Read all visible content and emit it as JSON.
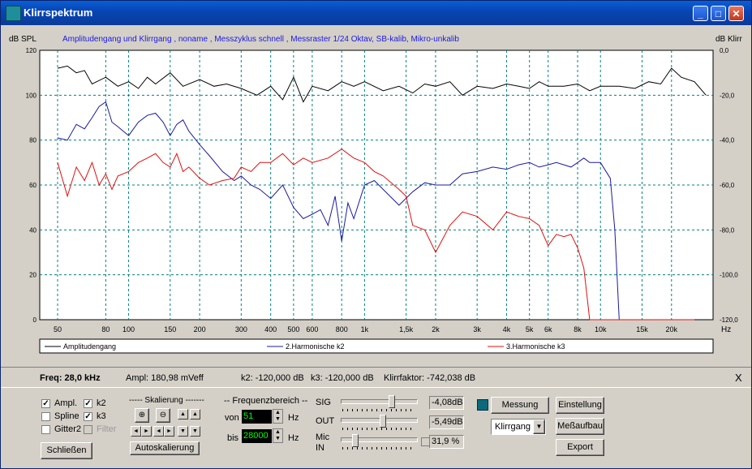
{
  "window": {
    "title": "Klirrspektrum"
  },
  "chart_data": {
    "type": "line",
    "title": "Amplitudengang und Klirrgang , noname , Messzyklus schnell , Messraster 1/24 Oktav, SB-kalib, Mikro-unkalib",
    "ylabel_left": "dB SPL",
    "ylabel_right": "dB Klirr",
    "xlabel": "Hz",
    "x_scale": "log",
    "xlim": [
      42,
      30000
    ],
    "ylim_left": [
      0,
      120
    ],
    "ylim_right": [
      -120,
      0
    ],
    "x_ticks": [
      {
        "v": 50,
        "t": "50"
      },
      {
        "v": 80,
        "t": "80"
      },
      {
        "v": 100,
        "t": "100"
      },
      {
        "v": 150,
        "t": "150"
      },
      {
        "v": 200,
        "t": "200"
      },
      {
        "v": 300,
        "t": "300"
      },
      {
        "v": 400,
        "t": "400"
      },
      {
        "v": 500,
        "t": "500"
      },
      {
        "v": 600,
        "t": "600"
      },
      {
        "v": 800,
        "t": "800"
      },
      {
        "v": 1000,
        "t": "1k"
      },
      {
        "v": 1500,
        "t": "1,5k"
      },
      {
        "v": 2000,
        "t": "2k"
      },
      {
        "v": 3000,
        "t": "3k"
      },
      {
        "v": 4000,
        "t": "4k"
      },
      {
        "v": 5000,
        "t": "5k"
      },
      {
        "v": 6000,
        "t": "6k"
      },
      {
        "v": 8000,
        "t": "8k"
      },
      {
        "v": 10000,
        "t": "10k"
      },
      {
        "v": 15000,
        "t": "15k"
      },
      {
        "v": 20000,
        "t": "20k"
      }
    ],
    "y_ticks_left": [
      "120",
      "100",
      "80",
      "60",
      "40",
      "20",
      "0"
    ],
    "y_ticks_right": [
      "0,0",
      "-20,0",
      "-40,0",
      "-60,0",
      "-80,0",
      "-100,0",
      "-120,0"
    ],
    "grid": true,
    "legend_position": "bottom",
    "series": [
      {
        "name": "Amplitudengang",
        "color": "#000000",
        "x": [
          50,
          55,
          60,
          65,
          70,
          80,
          90,
          100,
          110,
          120,
          130,
          150,
          170,
          200,
          230,
          260,
          300,
          350,
          400,
          450,
          500,
          550,
          600,
          700,
          800,
          900,
          1000,
          1200,
          1400,
          1600,
          1800,
          2000,
          2300,
          2600,
          3000,
          3500,
          4000,
          4500,
          5000,
          5500,
          6000,
          7000,
          8000,
          9000,
          10000,
          12000,
          14000,
          16000,
          18000,
          20000,
          22000,
          25000,
          28000
        ],
        "y": [
          112,
          113,
          110,
          111,
          105,
          108,
          104,
          106,
          103,
          108,
          105,
          110,
          104,
          107,
          104,
          105,
          103,
          100,
          104,
          98,
          108,
          97,
          104,
          102,
          106,
          104,
          106,
          102,
          104,
          101,
          105,
          104,
          106,
          100,
          104,
          103,
          105,
          104,
          103,
          106,
          104,
          104,
          105,
          102,
          104,
          104,
          103,
          106,
          105,
          112,
          108,
          106,
          100
        ]
      },
      {
        "name": "2.Harmonische k2",
        "color": "#1a1aa0",
        "x": [
          50,
          55,
          60,
          65,
          70,
          75,
          80,
          85,
          90,
          100,
          110,
          120,
          130,
          140,
          150,
          160,
          170,
          180,
          200,
          220,
          250,
          280,
          300,
          330,
          360,
          400,
          450,
          500,
          550,
          600,
          650,
          700,
          750,
          800,
          850,
          900,
          1000,
          1100,
          1200,
          1400,
          1600,
          1800,
          2000,
          2300,
          2600,
          3000,
          3500,
          4000,
          4500,
          5000,
          5500,
          6000,
          6500,
          7000,
          7500,
          8000,
          8500,
          9000,
          10000,
          11000,
          11500,
          12000
        ],
        "y": [
          81,
          80,
          87,
          85,
          90,
          95,
          97,
          88,
          86,
          82,
          88,
          91,
          92,
          88,
          82,
          87,
          89,
          84,
          78,
          73,
          66,
          62,
          64,
          60,
          58,
          54,
          60,
          50,
          45,
          47,
          49,
          42,
          55,
          35,
          52,
          45,
          60,
          62,
          58,
          51,
          57,
          61,
          60,
          60,
          65,
          66,
          68,
          67,
          69,
          70,
          68,
          69,
          70,
          69,
          68,
          70,
          72,
          70,
          70,
          63,
          40,
          0
        ]
      },
      {
        "name": "3.Harmonische k3",
        "color": "#e01010",
        "x": [
          50,
          55,
          60,
          65,
          70,
          75,
          80,
          85,
          90,
          100,
          110,
          120,
          130,
          140,
          150,
          160,
          170,
          180,
          200,
          220,
          250,
          280,
          300,
          330,
          360,
          400,
          450,
          500,
          550,
          600,
          700,
          800,
          900,
          1000,
          1100,
          1200,
          1400,
          1500,
          1600,
          1800,
          2000,
          2300,
          2600,
          3000,
          3500,
          4000,
          4500,
          5000,
          5500,
          6000,
          6500,
          7000,
          7500,
          8000,
          8500,
          9000,
          10000,
          12000,
          15000,
          20000,
          25000
        ],
        "y": [
          70,
          55,
          68,
          62,
          70,
          60,
          65,
          58,
          64,
          66,
          70,
          72,
          74,
          70,
          68,
          74,
          66,
          68,
          63,
          60,
          62,
          63,
          68,
          66,
          70,
          70,
          74,
          69,
          72,
          70,
          72,
          76,
          72,
          70,
          66,
          64,
          58,
          55,
          42,
          40,
          30,
          42,
          48,
          46,
          40,
          48,
          46,
          45,
          42,
          33,
          38,
          37,
          38,
          32,
          23,
          0,
          0,
          0,
          0,
          0,
          0
        ]
      }
    ]
  },
  "status": {
    "freq": "Freq: 28,0 kHz",
    "ampl": "Ampl: 180,98 mVeff",
    "k2": "k2:  -120,000 dB",
    "k3": "k3:  -120,000 dB",
    "klirr": "Klirrfaktor:  -742,038 dB",
    "close": "X"
  },
  "controls": {
    "chk_ampl": "Ampl.",
    "chk_k2": "k2",
    "chk_spline": "Spline",
    "chk_k3": "k3",
    "chk_gitter": "Gitter2",
    "chk_filter": "Filter",
    "btn_schliessen": "Schließen",
    "skalierung_label": "----- Skalierung -------",
    "btn_auto": "Autoskalierung",
    "freq_label": "-- Frequenzbereich --",
    "von_label": "von",
    "von_value": "51",
    "von_unit": "Hz",
    "bis_label": "bis",
    "bis_value": "28000",
    "bis_unit": "Hz",
    "sig_label": "SIG",
    "sig_value": "-4,08dB",
    "out_label": "OUT",
    "out_value": "-5,49dB",
    "mic_label": "Mic",
    "in_label": "IN",
    "mic_value": "31,9 %",
    "btn_messung": "Messung",
    "dropdown_value": "Klirrgang",
    "btn_einstellung": "Einstellung",
    "btn_messaufbau": "Meßaufbau",
    "btn_export": "Export"
  }
}
